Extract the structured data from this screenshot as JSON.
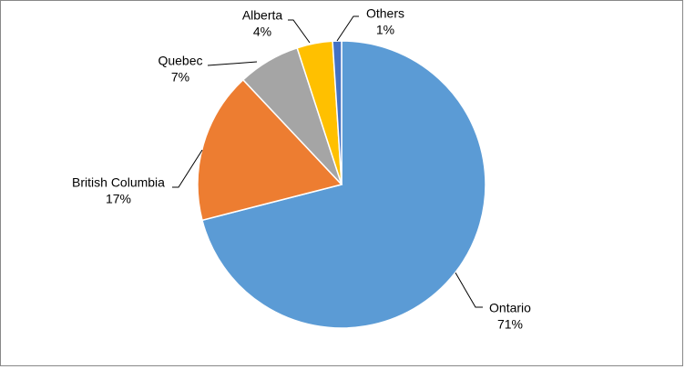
{
  "chart_data": {
    "type": "pie",
    "categories": [
      "Ontario",
      "British Columbia",
      "Quebec",
      "Alberta",
      "Others"
    ],
    "values": [
      71,
      17,
      7,
      4,
      1
    ],
    "value_labels": [
      "71%",
      "17%",
      "7%",
      "4%",
      "1%"
    ],
    "colors": [
      "#5b9bd5",
      "#ed7d31",
      "#a5a5a5",
      "#ffc000",
      "#4472c4"
    ]
  }
}
